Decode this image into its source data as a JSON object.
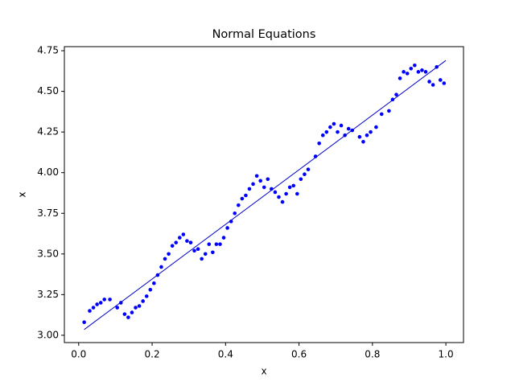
{
  "chart_data": {
    "type": "scatter",
    "title": "Normal Equations",
    "xlabel": "x",
    "ylabel": "x",
    "x": [
      0.015,
      0.03,
      0.04,
      0.05,
      0.06,
      0.07,
      0.085,
      0.105,
      0.115,
      0.125,
      0.135,
      0.145,
      0.155,
      0.165,
      0.175,
      0.185,
      0.195,
      0.205,
      0.215,
      0.225,
      0.235,
      0.245,
      0.255,
      0.265,
      0.275,
      0.285,
      0.295,
      0.305,
      0.315,
      0.325,
      0.335,
      0.345,
      0.355,
      0.365,
      0.375,
      0.385,
      0.395,
      0.405,
      0.415,
      0.425,
      0.435,
      0.445,
      0.455,
      0.465,
      0.475,
      0.485,
      0.495,
      0.505,
      0.515,
      0.525,
      0.535,
      0.545,
      0.555,
      0.565,
      0.575,
      0.585,
      0.595,
      0.605,
      0.615,
      0.625,
      0.645,
      0.655,
      0.665,
      0.675,
      0.685,
      0.695,
      0.705,
      0.715,
      0.725,
      0.735,
      0.745,
      0.765,
      0.775,
      0.785,
      0.795,
      0.81,
      0.825,
      0.845,
      0.855,
      0.865,
      0.875,
      0.885,
      0.895,
      0.905,
      0.915,
      0.925,
      0.935,
      0.945,
      0.955,
      0.965,
      0.975,
      0.985,
      0.995
    ],
    "values": [
      3.08,
      3.15,
      3.17,
      3.19,
      3.2,
      3.22,
      3.22,
      3.17,
      3.2,
      3.13,
      3.11,
      3.14,
      3.17,
      3.18,
      3.21,
      3.24,
      3.28,
      3.32,
      3.37,
      3.42,
      3.47,
      3.5,
      3.55,
      3.57,
      3.6,
      3.62,
      3.58,
      3.57,
      3.52,
      3.53,
      3.47,
      3.5,
      3.56,
      3.51,
      3.56,
      3.56,
      3.6,
      3.66,
      3.7,
      3.75,
      3.8,
      3.84,
      3.86,
      3.9,
      3.93,
      3.98,
      3.95,
      3.91,
      3.96,
      3.9,
      3.88,
      3.85,
      3.82,
      3.87,
      3.91,
      3.92,
      3.87,
      3.96,
      3.99,
      4.02,
      4.1,
      4.18,
      4.23,
      4.25,
      4.28,
      4.3,
      4.25,
      4.29,
      4.23,
      4.27,
      4.26,
      4.22,
      4.19,
      4.23,
      4.25,
      4.28,
      4.36,
      4.38,
      4.45,
      4.48,
      4.58,
      4.62,
      4.61,
      4.64,
      4.66,
      4.62,
      4.63,
      4.62,
      4.56,
      4.54,
      4.65,
      4.57,
      4.55
    ],
    "color": "#0000ff",
    "fit_line": {
      "x": [
        0.015,
        1.0
      ],
      "values": [
        3.035,
        4.69
      ],
      "color": "#0000cc"
    },
    "xlim": [
      -0.039,
      1.048
    ],
    "ylim": [
      2.955,
      4.775
    ],
    "xticks": [
      {
        "value": 0,
        "label": "0.0"
      },
      0.2,
      0.4,
      0.6,
      0.8,
      {
        "value": 1,
        "label": "1.0"
      }
    ],
    "yticks": [
      {
        "value": 3,
        "label": "3.00"
      },
      3.25,
      {
        "value": 3.5,
        "label": "3.50"
      },
      3.75,
      {
        "value": 4,
        "label": "4.00"
      },
      4.25,
      {
        "value": 4.5,
        "label": "4.50"
      },
      4.75
    ]
  }
}
